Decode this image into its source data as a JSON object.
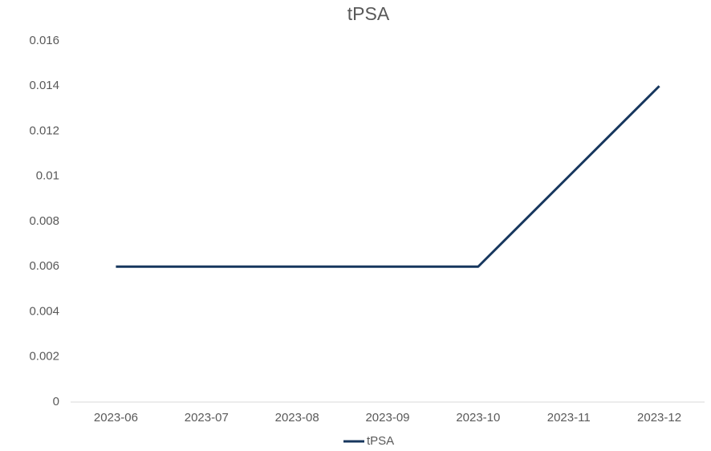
{
  "chart_data": {
    "type": "line",
    "title": "tPSA",
    "categories": [
      "2023-06",
      "2023-07",
      "2023-08",
      "2023-09",
      "2023-10",
      "2023-11",
      "2023-12"
    ],
    "series": [
      {
        "name": "tPSA",
        "color": "#17375e",
        "values": [
          0.006,
          0.006,
          0.006,
          0.006,
          0.006,
          0.01,
          0.014
        ]
      }
    ],
    "ylim": [
      0,
      0.016
    ],
    "yticks": [
      0,
      0.002,
      0.004,
      0.006,
      0.008,
      0.01,
      0.012,
      0.014,
      0.016
    ],
    "grid": false,
    "legend": "bottom"
  }
}
